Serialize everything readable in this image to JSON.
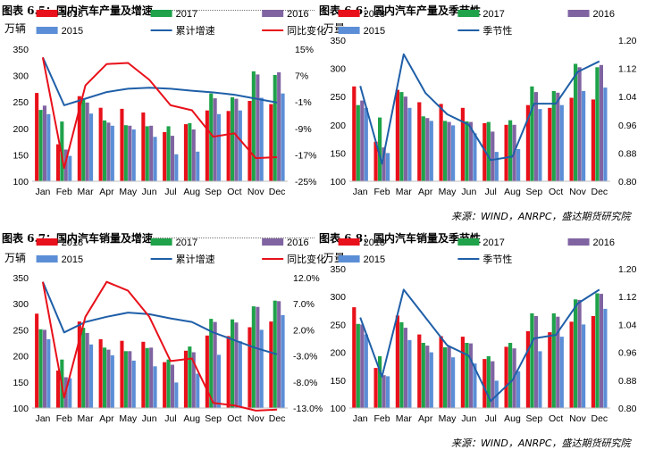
{
  "source_text": "来源：WIND，ANRPC，盛达期货研究院",
  "chart_data": [
    {
      "type": "bar",
      "title": "图表 6.5：国内汽车产量及增速",
      "ylabel": "万辆",
      "ylim": [
        100,
        350
      ],
      "yticks": [
        "100",
        "150",
        "200",
        "250",
        "300",
        "350"
      ],
      "y2lim": [
        -25,
        15
      ],
      "y2ticks": [
        "-25%",
        "-17%",
        "-9%",
        "-1%",
        "7%",
        "15%"
      ],
      "categories": [
        "Jan",
        "Feb",
        "Mar",
        "Apr",
        "May",
        "Jun",
        "Jul",
        "Aug",
        "Sep",
        "Oct",
        "Nov",
        "Dec"
      ],
      "series": [
        {
          "name": "2018",
          "color": "#e8101a",
          "values": [
            267,
            170,
            261,
            239,
            237,
            230,
            193,
            208,
            234,
            233,
            252,
            246
          ]
        },
        {
          "name": "2017",
          "color": "#1fa24a",
          "values": [
            235,
            213,
            257,
            215,
            206,
            204,
            204,
            210,
            266,
            259,
            308,
            301
          ]
        },
        {
          "name": "2016",
          "color": "#8064a2",
          "values": [
            243,
            160,
            249,
            211,
            205,
            205,
            186,
            198,
            257,
            256,
            302,
            306
          ]
        },
        {
          "name": "2015",
          "color": "#5b8ed6",
          "values": [
            227,
            148,
            228,
            205,
            198,
            184,
            151,
            156,
            227,
            234,
            258,
            266
          ]
        }
      ],
      "lines": [
        {
          "name": "累计增速",
          "color": "#1f5fa8",
          "axis": "right",
          "values": [
            12.5,
            -2,
            0,
            2,
            3,
            3.3,
            3,
            2.4,
            1.9,
            1.2,
            0,
            -1.2
          ]
        },
        {
          "name": "同比变化",
          "color": "#e8101a",
          "axis": "right",
          "values": [
            12.5,
            -21,
            4,
            10.5,
            10.8,
            5.7,
            -2,
            -3.5,
            -11.5,
            -10.5,
            -18,
            -17.7
          ]
        }
      ],
      "legend": "top"
    },
    {
      "type": "bar",
      "title": "图表 6.6：国内汽车产量及季节性",
      "ylabel": "万量",
      "ylim": [
        100,
        350
      ],
      "yticks": [
        "100",
        "150",
        "200",
        "250",
        "300",
        "350"
      ],
      "y2lim": [
        0.8,
        1.2
      ],
      "y2ticks": [
        "0.80",
        "0.88",
        "0.96",
        "1.04",
        "1.12",
        "1.20"
      ],
      "categories": [
        "Jan",
        "Feb",
        "Mar",
        "Apr",
        "May",
        "Jun",
        "Jul",
        "Aug",
        "Sep",
        "Oct",
        "Nov",
        "Dec"
      ],
      "series": [
        {
          "name": "2018",
          "color": "#e8101a",
          "values": [
            268,
            170,
            262,
            240,
            237,
            230,
            203,
            200,
            235,
            230,
            248,
            245
          ]
        },
        {
          "name": "2017",
          "color": "#1fa24a",
          "values": [
            235,
            213,
            258,
            215,
            207,
            206,
            205,
            208,
            268,
            260,
            308,
            302
          ]
        },
        {
          "name": "2016",
          "color": "#8064a2",
          "values": [
            243,
            160,
            250,
            212,
            205,
            205,
            188,
            200,
            258,
            257,
            302,
            306
          ]
        },
        {
          "name": "2015",
          "color": "#5b8ed6",
          "values": [
            230,
            150,
            230,
            207,
            199,
            185,
            152,
            157,
            228,
            235,
            260,
            266
          ]
        }
      ],
      "lines": [
        {
          "name": "季节性",
          "color": "#1f5fa8",
          "axis": "right",
          "values": [
            1.07,
            0.85,
            1.16,
            1.05,
            0.99,
            0.96,
            0.86,
            0.87,
            1.02,
            1.02,
            1.11,
            1.14
          ]
        }
      ],
      "legend": "top"
    },
    {
      "type": "bar",
      "title": "图表 6.7：国内汽车销量及增速",
      "ylabel": "万辆",
      "ylim": [
        100,
        350
      ],
      "yticks": [
        "100",
        "150",
        "200",
        "250",
        "300",
        "350"
      ],
      "y2lim": [
        -13,
        12
      ],
      "y2ticks": [
        "-13.0%",
        "-8.0%",
        "-3.0%",
        "2.0%",
        "7.0%",
        "12.0%"
      ],
      "categories": [
        "Jan",
        "Feb",
        "Mar",
        "Apr",
        "May",
        "Jun",
        "Jul",
        "Aug",
        "Sep",
        "Oct",
        "Nov",
        "Dec"
      ],
      "series": [
        {
          "name": "2018",
          "color": "#e8101a",
          "values": [
            281,
            172,
            266,
            232,
            229,
            227,
            188,
            210,
            239,
            238,
            255,
            266
          ]
        },
        {
          "name": "2017",
          "color": "#1fa24a",
          "values": [
            251,
            193,
            254,
            216,
            209,
            215,
            193,
            218,
            271,
            270,
            295,
            306
          ]
        },
        {
          "name": "2016",
          "color": "#8064a2",
          "values": [
            250,
            159,
            244,
            212,
            209,
            216,
            183,
            207,
            265,
            264,
            294,
            305
          ]
        },
        {
          "name": "2015",
          "color": "#5b8ed6",
          "values": [
            232,
            157,
            222,
            201,
            191,
            180,
            149,
            166,
            202,
            228,
            250,
            278
          ]
        }
      ],
      "lines": [
        {
          "name": "累计增速",
          "color": "#1f5fa8",
          "axis": "right",
          "values": [
            11.2,
            1.5,
            3.5,
            4.5,
            5.3,
            5,
            4.2,
            3.5,
            1.5,
            0,
            -1.5,
            -2.7
          ]
        },
        {
          "name": "同比变化",
          "color": "#e8101a",
          "axis": "right",
          "values": [
            11.2,
            -11,
            4.5,
            11.2,
            9.5,
            4.5,
            -4,
            -3.5,
            -12,
            -12.5,
            -13.5,
            -13.3
          ]
        }
      ],
      "legend": "top"
    },
    {
      "type": "bar",
      "title": "图表 6.8：国内汽车销量及季节性",
      "ylabel": "万量",
      "ylim": [
        100,
        350
      ],
      "yticks": [
        "100",
        "150",
        "200",
        "250",
        "300",
        "350"
      ],
      "y2lim": [
        0.8,
        1.2
      ],
      "y2ticks": [
        "0.80",
        "0.88",
        "0.96",
        "1.04",
        "1.12",
        "1.20"
      ],
      "categories": [
        "Jan",
        "Feb",
        "Mar",
        "Apr",
        "May",
        "Jun",
        "Jul",
        "Aug",
        "Sep",
        "Oct",
        "Nov",
        "Dec"
      ],
      "series": [
        {
          "name": "2018",
          "color": "#e8101a",
          "values": [
            281,
            172,
            266,
            232,
            229,
            228,
            188,
            210,
            238,
            236,
            255,
            265
          ]
        },
        {
          "name": "2017",
          "color": "#1fa24a",
          "values": [
            251,
            193,
            254,
            217,
            209,
            217,
            193,
            217,
            270,
            270,
            295,
            306
          ]
        },
        {
          "name": "2016",
          "color": "#8064a2",
          "values": [
            250,
            159,
            244,
            212,
            210,
            216,
            184,
            207,
            265,
            264,
            294,
            305
          ]
        },
        {
          "name": "2015",
          "color": "#5b8ed6",
          "values": [
            232,
            157,
            222,
            200,
            191,
            180,
            149,
            166,
            202,
            228,
            250,
            278
          ]
        }
      ],
      "lines": [
        {
          "name": "季节性",
          "color": "#1f5fa8",
          "axis": "right",
          "values": [
            1.06,
            0.89,
            1.14,
            1.06,
            0.98,
            0.95,
            0.82,
            0.88,
            1.0,
            1.01,
            1.1,
            1.14
          ]
        }
      ],
      "legend": "top"
    }
  ]
}
